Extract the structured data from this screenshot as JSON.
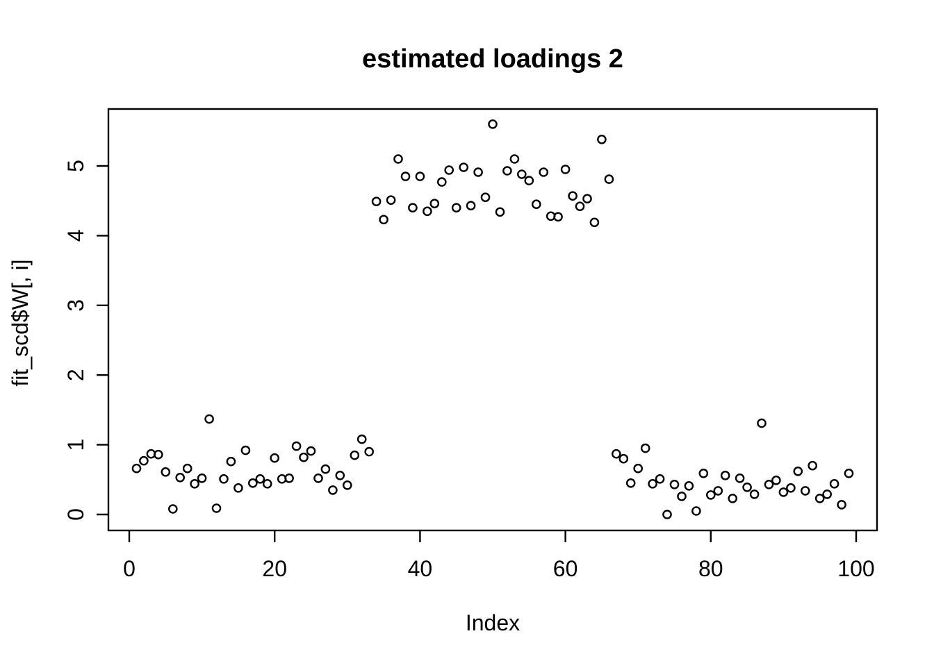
{
  "chart_data": {
    "type": "scatter",
    "title": "estimated loadings 2",
    "xlabel": "Index",
    "ylabel": "fit_scd$W[, i]",
    "marker": "open-circle",
    "marker_color": "#000000",
    "background_color": "#ffffff",
    "grid": "off",
    "legend": "none",
    "x_ticks": [
      0,
      20,
      40,
      60,
      80,
      100
    ],
    "y_ticks": [
      0,
      1,
      2,
      3,
      4,
      5
    ],
    "xlim": [
      -3,
      103
    ],
    "ylim": [
      -0.23,
      5.82
    ],
    "x": [
      1,
      2,
      3,
      4,
      5,
      6,
      7,
      8,
      9,
      10,
      11,
      12,
      13,
      14,
      15,
      16,
      17,
      18,
      19,
      20,
      21,
      22,
      23,
      24,
      25,
      26,
      27,
      28,
      29,
      30,
      31,
      32,
      33,
      34,
      35,
      36,
      37,
      38,
      39,
      40,
      41,
      42,
      43,
      44,
      45,
      46,
      47,
      48,
      49,
      50,
      51,
      52,
      53,
      54,
      55,
      56,
      57,
      58,
      59,
      60,
      61,
      62,
      63,
      64,
      65,
      66,
      67,
      68,
      69,
      70,
      71,
      72,
      73,
      74,
      75,
      76,
      77,
      78,
      79,
      80,
      81,
      82,
      83,
      84,
      85,
      86,
      87,
      88,
      89,
      90,
      91,
      92,
      93,
      94,
      95,
      96,
      97,
      98,
      99
    ],
    "y": [
      0.66,
      0.77,
      0.87,
      0.86,
      0.61,
      0.08,
      0.53,
      0.66,
      0.44,
      0.52,
      1.37,
      0.09,
      0.51,
      0.76,
      0.38,
      0.92,
      0.45,
      0.51,
      0.44,
      0.81,
      0.51,
      0.52,
      0.98,
      0.82,
      0.91,
      0.52,
      0.65,
      0.35,
      0.56,
      0.42,
      0.85,
      1.08,
      0.9,
      4.49,
      4.23,
      4.51,
      5.1,
      4.85,
      4.4,
      4.85,
      4.35,
      4.46,
      4.77,
      4.94,
      4.4,
      4.98,
      4.43,
      4.91,
      4.55,
      5.6,
      4.34,
      4.93,
      5.1,
      4.88,
      4.79,
      4.45,
      4.91,
      4.28,
      4.27,
      4.95,
      4.57,
      4.42,
      4.53,
      4.19,
      5.38,
      4.81,
      0.87,
      0.8,
      0.45,
      0.66,
      0.95,
      0.44,
      0.51,
      0.0,
      0.43,
      0.26,
      0.41,
      0.05,
      0.59,
      0.28,
      0.34,
      0.56,
      0.23,
      0.52,
      0.39,
      0.29,
      1.31,
      0.43,
      0.49,
      0.32,
      0.38,
      0.62,
      0.34,
      0.7,
      0.23,
      0.29,
      0.44,
      0.14,
      0.59
    ]
  }
}
